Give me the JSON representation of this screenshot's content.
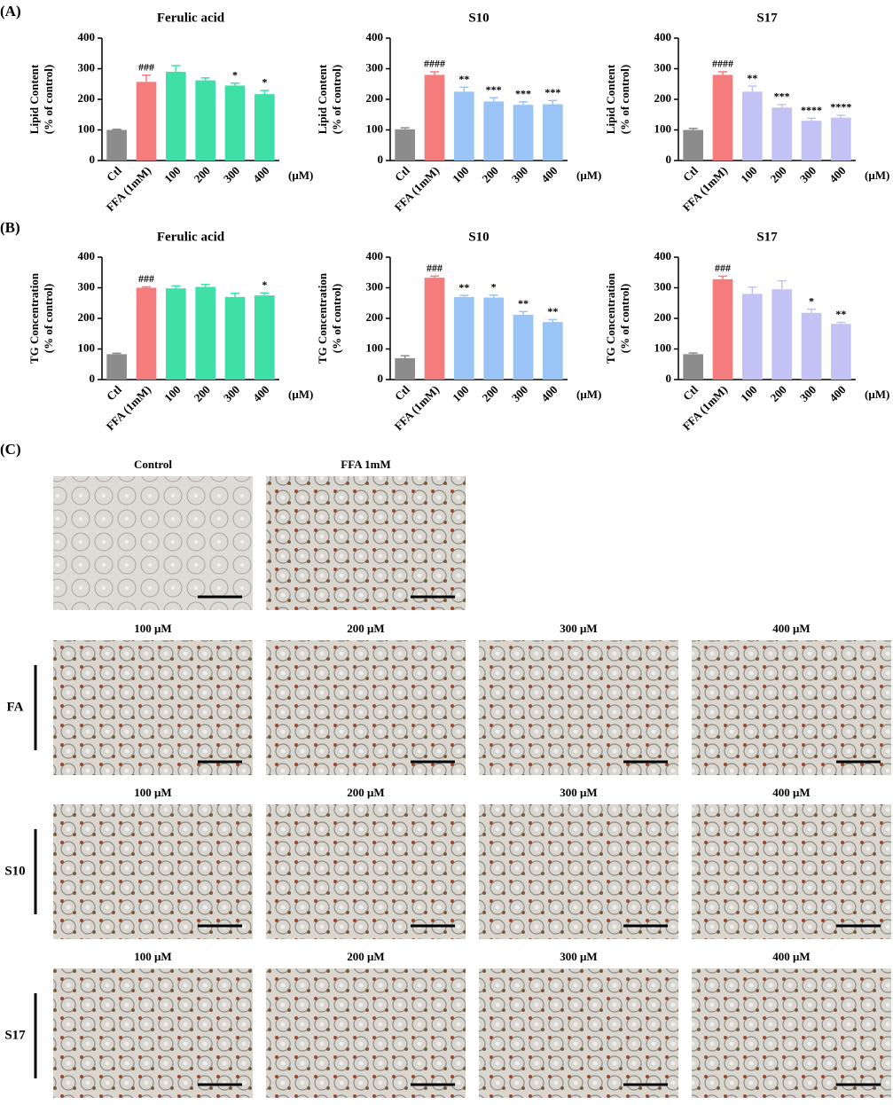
{
  "panel_labels": [
    "(A)",
    "(B)",
    "(C)"
  ],
  "chart_data": [
    {
      "type": "bar",
      "title": "Ferulic acid",
      "ylabel": [
        "Lipid Content",
        "(% of control)"
      ],
      "unit": "(μM)",
      "categories": [
        "Ctl",
        "FFA (1mM)",
        "100",
        "200",
        "300",
        "400"
      ],
      "values": [
        100,
        257,
        290,
        262,
        245,
        217
      ],
      "errors": [
        2,
        22,
        20,
        8,
        8,
        12
      ],
      "annotations": [
        null,
        "###",
        null,
        null,
        "*",
        "*"
      ],
      "colors": [
        "#8c8c8c",
        "#f47c7c",
        "#3fe0a8",
        "#3fe0a8",
        "#3fe0a8",
        "#3fe0a8"
      ],
      "ylim": [
        0,
        400
      ],
      "yticks": [
        0,
        100,
        200,
        300,
        400
      ]
    },
    {
      "type": "bar",
      "title": "S10",
      "ylabel": [
        "Lipid Content",
        "(% of control)"
      ],
      "unit": "(μM)",
      "categories": [
        "Ctl",
        "FFA (1mM)",
        "100",
        "200",
        "300",
        "400"
      ],
      "values": [
        102,
        280,
        225,
        193,
        182,
        184
      ],
      "errors": [
        5,
        10,
        15,
        12,
        10,
        12
      ],
      "annotations": [
        null,
        "####",
        "**",
        "***",
        "***",
        "***"
      ],
      "colors": [
        "#8c8c8c",
        "#f47c7c",
        "#99c4f5",
        "#99c4f5",
        "#99c4f5",
        "#99c4f5"
      ],
      "ylim": [
        0,
        400
      ],
      "yticks": [
        0,
        100,
        200,
        300,
        400
      ]
    },
    {
      "type": "bar",
      "title": "S17",
      "ylabel": [
        "Lipid Content",
        "(% of control)"
      ],
      "unit": "(μM)",
      "categories": [
        "Ctl",
        "FFA (1mM)",
        "100",
        "200",
        "300",
        "400"
      ],
      "values": [
        100,
        280,
        225,
        173,
        130,
        140
      ],
      "errors": [
        5,
        10,
        18,
        10,
        8,
        8
      ],
      "annotations": [
        null,
        "####",
        "**",
        "***",
        "****",
        "****"
      ],
      "colors": [
        "#8c8c8c",
        "#f47c7c",
        "#c2c2f4",
        "#c2c2f4",
        "#c2c2f4",
        "#c2c2f4"
      ],
      "ylim": [
        0,
        400
      ],
      "yticks": [
        0,
        100,
        200,
        300,
        400
      ]
    },
    {
      "type": "bar",
      "title": "Ferulic acid",
      "ylabel": [
        "TG Concentration",
        "(% of control)"
      ],
      "unit": "(μM)",
      "categories": [
        "Ctl",
        "FFA (1mM)",
        "100",
        "200",
        "300",
        "400"
      ],
      "values": [
        83,
        300,
        298,
        303,
        270,
        275
      ],
      "errors": [
        3,
        3,
        8,
        8,
        12,
        8
      ],
      "annotations": [
        null,
        "###",
        null,
        null,
        null,
        "*"
      ],
      "colors": [
        "#8c8c8c",
        "#f47c7c",
        "#3fe0a8",
        "#3fe0a8",
        "#3fe0a8",
        "#3fe0a8"
      ],
      "ylim": [
        0,
        400
      ],
      "yticks": [
        0,
        100,
        200,
        300,
        400
      ]
    },
    {
      "type": "bar",
      "title": "S10",
      "ylabel": [
        "TG Concentration",
        "(% of control)"
      ],
      "unit": "(μM)",
      "categories": [
        "Ctl",
        "FFA (1mM)",
        "100",
        "200",
        "300",
        "400"
      ],
      "values": [
        70,
        333,
        270,
        268,
        212,
        188
      ],
      "errors": [
        8,
        5,
        5,
        8,
        10,
        8
      ],
      "annotations": [
        null,
        "###",
        "**",
        "*",
        "**",
        "**"
      ],
      "colors": [
        "#8c8c8c",
        "#f47c7c",
        "#99c4f5",
        "#99c4f5",
        "#99c4f5",
        "#99c4f5"
      ],
      "ylim": [
        0,
        400
      ],
      "yticks": [
        0,
        100,
        200,
        300,
        400
      ]
    },
    {
      "type": "bar",
      "title": "S17",
      "ylabel": [
        "TG Concentration",
        "(% of control)"
      ],
      "unit": "(μM)",
      "categories": [
        "Ctl",
        "FFA (1mM)",
        "100",
        "200",
        "300",
        "400"
      ],
      "values": [
        83,
        328,
        280,
        295,
        218,
        182
      ],
      "errors": [
        4,
        10,
        22,
        28,
        12,
        5
      ],
      "annotations": [
        null,
        "###",
        null,
        null,
        "*",
        "**"
      ],
      "colors": [
        "#8c8c8c",
        "#f47c7c",
        "#c2c2f4",
        "#c2c2f4",
        "#c2c2f4",
        "#c2c2f4"
      ],
      "ylim": [
        0,
        400
      ],
      "yticks": [
        0,
        100,
        200,
        300,
        400
      ]
    }
  ],
  "micrographs": {
    "top": [
      "Control",
      "FFA 1mM"
    ],
    "rows": [
      {
        "label": "FA",
        "columns": [
          "100 μM",
          "200 μM",
          "300 μM",
          "400 μM"
        ]
      },
      {
        "label": "S10",
        "columns": [
          "100 μM",
          "200 μM",
          "300 μM",
          "400 μM"
        ]
      },
      {
        "label": "S17",
        "columns": [
          "100 μM",
          "200 μM",
          "300 μM",
          "400 μM"
        ]
      }
    ]
  }
}
